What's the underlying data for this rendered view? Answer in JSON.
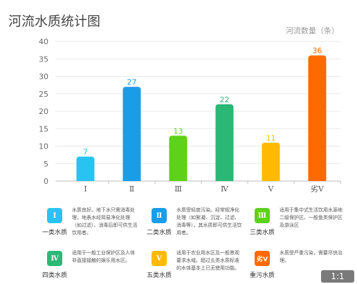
{
  "header": {
    "title": "河流水质统计图"
  },
  "chart_data": {
    "type": "bar",
    "title": "河流水质统计图",
    "ylabel": "河流数量（条）",
    "xlabel": "",
    "categories": [
      "Ⅰ",
      "Ⅱ",
      "Ⅲ",
      "Ⅳ",
      "Ⅴ",
      "劣Ⅴ"
    ],
    "values": [
      7,
      27,
      13,
      22,
      11,
      36
    ],
    "value_labels": [
      "7",
      "27",
      "13",
      "22",
      "11",
      "36"
    ],
    "colors": [
      "#29c3f2",
      "#1a9de8",
      "#5ed11a",
      "#2bb877",
      "#ffba00",
      "#ff6a00"
    ],
    "ylim": [
      0,
      40
    ],
    "yticks": [
      "0",
      "5",
      "10",
      "15",
      "20",
      "25",
      "30",
      "35",
      "40"
    ],
    "grid": true
  },
  "legend": [
    {
      "badge": "Ⅰ",
      "color": "#29c3f2",
      "name": "一类水质",
      "desc": "水质良好。地下水只需消毒处理，地表水经简易净化处理（如过滤）、消毒后即可供生活饮用者。"
    },
    {
      "badge": "Ⅱ",
      "color": "#1a9de8",
      "name": "二类水质",
      "desc": "水质受轻度污染。经常规净化处理（如絮凝、沉淀、过滤、消毒等），其水质即可供生活饮用者。"
    },
    {
      "badge": "Ⅲ",
      "color": "#5ed11a",
      "name": "三类水质",
      "desc": "适用于集中式生活饮用水源地二级保护区、一般鱼类保护区及游泳区"
    },
    {
      "badge": "Ⅳ",
      "color": "#2bb877",
      "name": "四类水质",
      "desc": "适用于一般工业保护区及人体非直接接触的娱乐用水区。"
    },
    {
      "badge": "Ⅴ",
      "color": "#ffba00",
      "name": "五类水质",
      "desc": "适用于农业用水区及一般景观要求水域。超过五类水质标准的水体基本上已无使用功能。"
    },
    {
      "badge": "劣Ⅴ",
      "color": "#ff6a00",
      "name": "重污水质",
      "desc": "水质受严重污染，需要尽快治理。"
    }
  ],
  "footer": {
    "zoom_label": "1:1"
  }
}
